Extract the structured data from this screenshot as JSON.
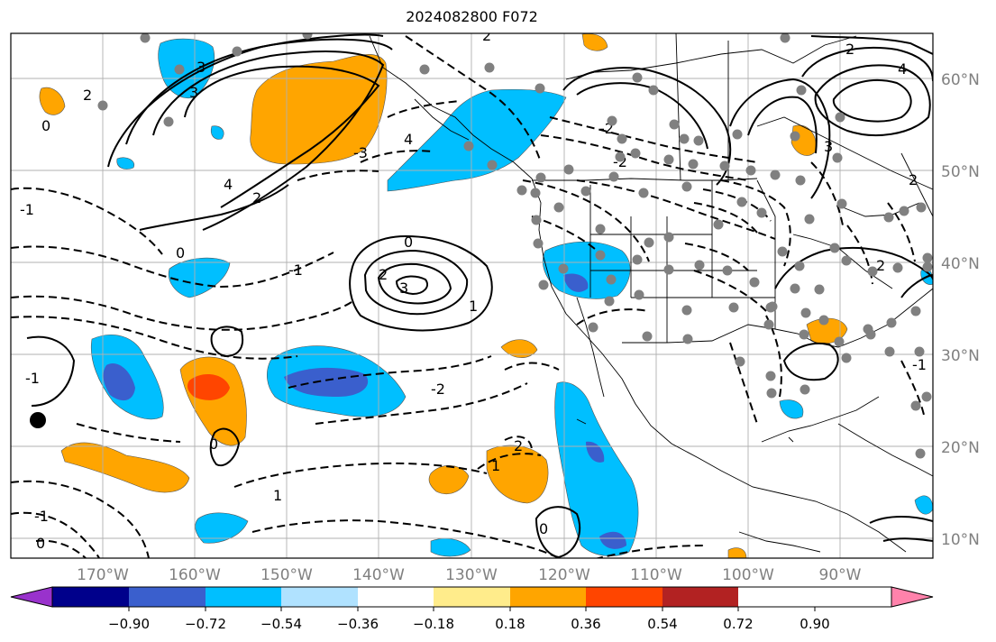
{
  "title": "2024082800 F072",
  "map": {
    "lon_range": [
      -180,
      -80
    ],
    "lat_range": [
      8,
      65
    ],
    "lat_labels": [
      "60°N",
      "50°N",
      "40°N",
      "30°N",
      "20°N",
      "10°N"
    ],
    "lon_labels": [
      "170°W",
      "160°W",
      "150°W",
      "140°W",
      "130°W",
      "120°W",
      "110°W",
      "100°W",
      "90°W"
    ]
  },
  "colorbar": {
    "colors": [
      "#9932cc",
      "#00008b",
      "#3a5fcd",
      "#00bfff",
      "#b0e2ff",
      "#ffffff",
      "#ffec8b",
      "#ffa500",
      "#ff4500",
      "#b22222",
      "#ff82ab"
    ],
    "labels": [
      "−0.90",
      "−0.72",
      "−0.54",
      "−0.36",
      "−0.18",
      "0.18",
      "0.36",
      "0.54",
      "0.72",
      "0.90"
    ]
  },
  "contour_labels": [
    "0",
    "2",
    "3",
    "4",
    "-1",
    "0",
    "2",
    "3",
    "-1",
    "-2",
    "-3",
    "4",
    "1",
    "0",
    "2",
    "-1",
    "0",
    "-2",
    "1",
    "2",
    "0",
    "-1",
    "3",
    "2",
    "-2",
    "2",
    "4",
    "2",
    "3",
    "0",
    "1",
    "2",
    "-1"
  ]
}
